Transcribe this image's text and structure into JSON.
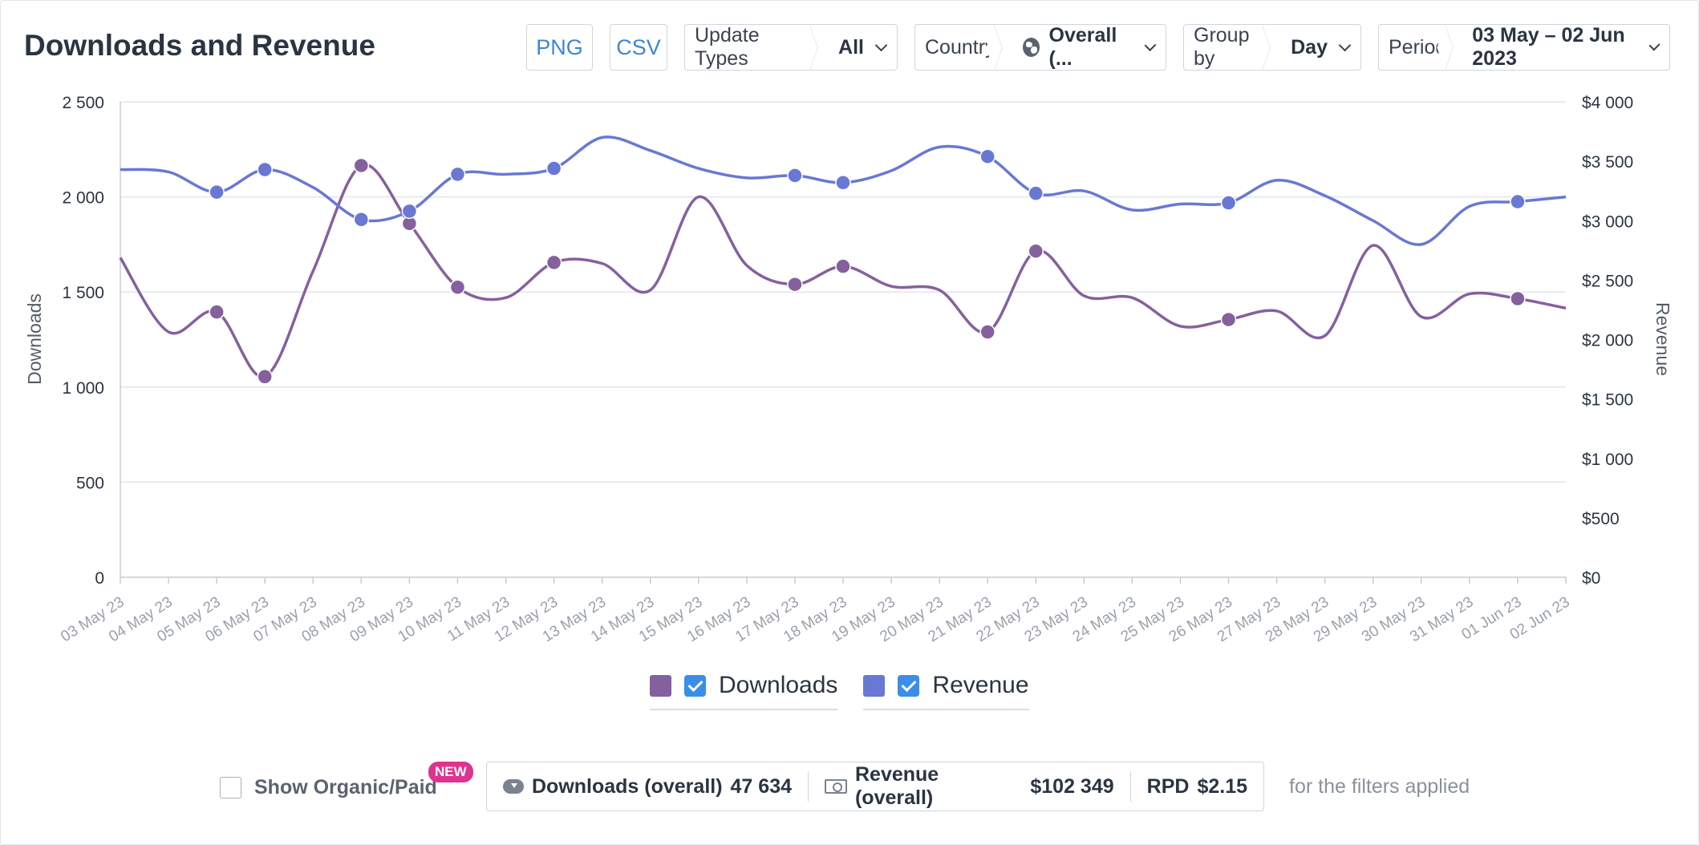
{
  "header": {
    "title": "Downloads and Revenue",
    "png_label": "PNG",
    "csv_label": "CSV",
    "update_types_label": "Update Types",
    "update_types_value": "All",
    "country_label": "Country",
    "country_value": "Overall (...",
    "group_by_label": "Group by",
    "group_by_value": "Day",
    "period_label": "Period",
    "period_value": "03 May – 02 Jun 2023"
  },
  "chart_data": {
    "type": "line",
    "smooth": true,
    "x": [
      "03 May 23",
      "04 May 23",
      "05 May 23",
      "06 May 23",
      "07 May 23",
      "08 May 23",
      "09 May 23",
      "10 May 23",
      "11 May 23",
      "12 May 23",
      "13 May 23",
      "14 May 23",
      "15 May 23",
      "16 May 23",
      "17 May 23",
      "18 May 23",
      "19 May 23",
      "20 May 23",
      "21 May 23",
      "22 May 23",
      "23 May 23",
      "24 May 23",
      "25 May 23",
      "26 May 23",
      "27 May 23",
      "28 May 23",
      "29 May 23",
      "30 May 23",
      "31 May 23",
      "01 Jun 23",
      "02 Jun 23"
    ],
    "series": [
      {
        "name": "Downloads",
        "axis": "left",
        "color": "#85609e",
        "values": [
          1680,
          1290,
          1395,
          1055,
          1610,
          2165,
          1860,
          1525,
          1470,
          1655,
          1650,
          1510,
          2000,
          1640,
          1540,
          1635,
          1530,
          1510,
          1290,
          1715,
          1480,
          1470,
          1320,
          1355,
          1400,
          1270,
          1745,
          1370,
          1490,
          1465,
          1415
        ],
        "markers": [
          false,
          false,
          true,
          true,
          false,
          true,
          true,
          true,
          false,
          true,
          false,
          false,
          false,
          false,
          true,
          true,
          false,
          false,
          true,
          true,
          false,
          false,
          false,
          true,
          false,
          false,
          false,
          false,
          false,
          true,
          false
        ]
      },
      {
        "name": "Revenue",
        "axis": "right",
        "color": "#6878d4",
        "values": [
          3430,
          3410,
          3240,
          3430,
          3280,
          3010,
          3080,
          3390,
          3390,
          3440,
          3700,
          3590,
          3440,
          3360,
          3380,
          3320,
          3420,
          3620,
          3540,
          3230,
          3250,
          3090,
          3140,
          3150,
          3340,
          3210,
          3000,
          2800,
          3120,
          3160,
          3200
        ],
        "markers": [
          false,
          false,
          true,
          true,
          false,
          true,
          true,
          true,
          false,
          true,
          false,
          false,
          false,
          false,
          true,
          true,
          false,
          false,
          true,
          true,
          false,
          false,
          false,
          true,
          false,
          false,
          false,
          false,
          false,
          true,
          false
        ]
      }
    ],
    "y_left": {
      "label": "Downloads",
      "min": 0,
      "max": 2500,
      "ticks": [
        "0",
        "500",
        "1 000",
        "1 500",
        "2 000",
        "2 500"
      ]
    },
    "y_right": {
      "label": "Revenue",
      "min": 0,
      "max": 4000,
      "ticks": [
        "$0",
        "$500",
        "$1 000",
        "$1 500",
        "$2 000",
        "$2 500",
        "$3 000",
        "$3 500",
        "$4 000"
      ]
    },
    "grid": true,
    "legend": "bottom-center"
  },
  "legend": {
    "downloads_label": "Downloads",
    "revenue_label": "Revenue",
    "downloads_color": "#85609e",
    "revenue_color": "#6878d4"
  },
  "footer": {
    "organic_label": "Show Organic/Paid",
    "new_badge": "NEW",
    "downloads_label": "Downloads (overall)",
    "downloads_value": "47 634",
    "revenue_label": "Revenue (overall)",
    "revenue_value": "$102 349",
    "rpd_label": "RPD",
    "rpd_value": "$2.15",
    "note": "for the filters applied"
  }
}
